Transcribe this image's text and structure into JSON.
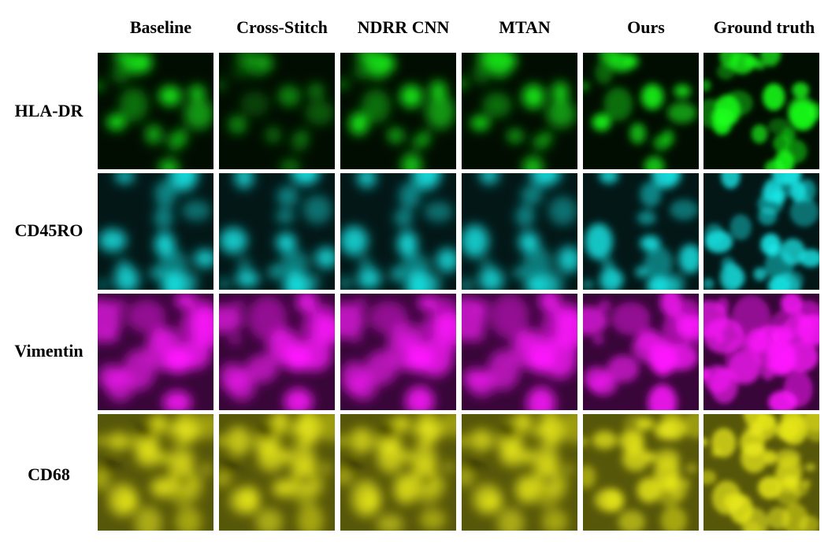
{
  "columns": [
    {
      "label": "Baseline"
    },
    {
      "label": "Cross-Stitch"
    },
    {
      "label": "NDRR CNN"
    },
    {
      "label": "MTAN"
    },
    {
      "label": "Ours"
    },
    {
      "label": "Ground truth"
    }
  ],
  "rows": [
    {
      "label": "HLA-DR",
      "color": "#1aff1a"
    },
    {
      "label": "CD45RO",
      "color": "#1ae6e6"
    },
    {
      "label": "Vimentin",
      "color": "#ff1aff"
    },
    {
      "label": "CD68",
      "color": "#e6e61a"
    }
  ]
}
